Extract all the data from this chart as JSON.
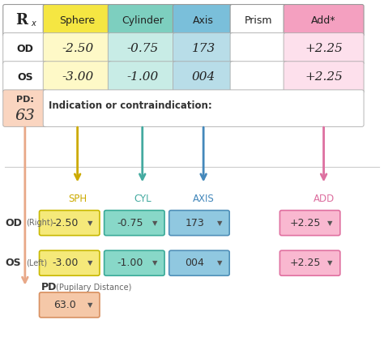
{
  "bg_color": "#ffffff",
  "table": {
    "headers": [
      "Rx",
      "Sphere",
      "Cylinder",
      "Axis",
      "Prism",
      "Add*"
    ],
    "header_colors": [
      "#ffffff",
      "#f5e642",
      "#7dcfbf",
      "#7abfda",
      "#ffffff",
      "#f4a0c0"
    ],
    "rows": [
      {
        "label": "OD",
        "sphere": "-2.50",
        "cylinder": "-0.75",
        "axis": "173",
        "prism": "",
        "add": "+2.25"
      },
      {
        "label": "OS",
        "sphere": "-3.00",
        "cylinder": "-1.00",
        "axis": "004",
        "prism": "",
        "add": "+2.25"
      }
    ],
    "indication_text": "Indication or contraindication:",
    "row_colors": [
      "#ffffff",
      "#fef9c7",
      "#c8ece6",
      "#b8dde8",
      "#ffffff",
      "#fde0ec"
    ],
    "pd_color": "#fad5c0"
  },
  "arrow_defs": [
    {
      "label": "SPH",
      "color": "#ccaa00"
    },
    {
      "label": "CYL",
      "color": "#44aaa0"
    },
    {
      "label": "AXIS",
      "color": "#4488bb"
    },
    {
      "label": "ADD",
      "color": "#dd70a0"
    }
  ],
  "od_row": {
    "label": "OD",
    "sublabel": "(Right)",
    "boxes": [
      {
        "value": "-2.50",
        "color": "#f5e97a",
        "border": "#c8b800"
      },
      {
        "value": "-0.75",
        "color": "#88d8c8",
        "border": "#3aaa98"
      },
      {
        "value": "173",
        "color": "#90c8e0",
        "border": "#5090b8"
      },
      {
        "value": "+2.25",
        "color": "#f9b8d0",
        "border": "#e070a0"
      }
    ]
  },
  "os_row": {
    "label": "OS",
    "sublabel": "(Left)",
    "boxes": [
      {
        "value": "-3.00",
        "color": "#f5e97a",
        "border": "#c8b800"
      },
      {
        "value": "-1.00",
        "color": "#88d8c8",
        "border": "#3aaa98"
      },
      {
        "value": "004",
        "color": "#90c8e0",
        "border": "#5090b8"
      },
      {
        "value": "+2.25",
        "color": "#f9b8d0",
        "border": "#e070a0"
      }
    ]
  },
  "pd_section": {
    "label": "PD",
    "sublabel": "(Pupilary Distance)",
    "value": "63.0",
    "color": "#f5c8a8",
    "border": "#d89060",
    "arrow_color": "#e8a888"
  }
}
